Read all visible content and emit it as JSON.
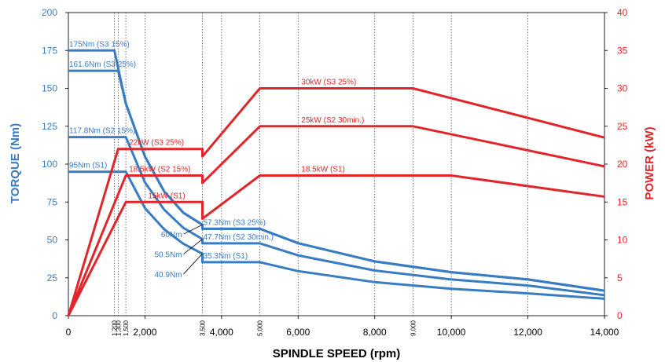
{
  "chart_data": {
    "type": "line",
    "title": "",
    "xlabel": "SPINDLE SPEED (rpm)",
    "ylabel_left": "TORQUE (Nm)",
    "ylabel_right": "POWER (kW)",
    "xlim": [
      0,
      14000
    ],
    "ylim_left": [
      0,
      200
    ],
    "ylim_right": [
      0,
      40
    ],
    "grid": "vertical dotted",
    "colors": {
      "torque": "#3a7cc2",
      "power": "#e1262b",
      "text": "#000000"
    },
    "x_ticks": [
      {
        "value": 0,
        "label": "0"
      },
      {
        "value": 2000,
        "label": "2,000"
      },
      {
        "value": 4000,
        "label": "4,000"
      },
      {
        "value": 6000,
        "label": "6,000"
      },
      {
        "value": 8000,
        "label": "8,000"
      },
      {
        "value": 10000,
        "label": "10,000"
      },
      {
        "value": 12000,
        "label": "12,000"
      },
      {
        "value": 14000,
        "label": "14,000"
      }
    ],
    "x_small_ticks": [
      {
        "value": 1200,
        "label": "1,200"
      },
      {
        "value": 1300,
        "label": "1,300"
      },
      {
        "value": 1500,
        "label": "1,500"
      },
      {
        "value": 3500,
        "label": "3,500"
      },
      {
        "value": 5000,
        "label": "5,000"
      },
      {
        "value": 9000,
        "label": "9,000"
      }
    ],
    "grid_x": [
      1200,
      1300,
      1500,
      2000,
      3500,
      4000,
      5000,
      6000,
      8000,
      9000,
      10000,
      12000
    ],
    "y_left_ticks": [
      0,
      25,
      50,
      75,
      100,
      125,
      150,
      175,
      200
    ],
    "y_right_ticks": [
      0,
      5,
      10,
      15,
      20,
      25,
      30,
      35,
      40
    ],
    "torque_series": [
      {
        "points": [
          [
            0,
            175
          ],
          [
            1200,
            175
          ],
          [
            1500,
            140
          ],
          [
            2000,
            105
          ],
          [
            2500,
            82
          ],
          [
            3000,
            68
          ],
          [
            3500,
            60
          ],
          [
            3500,
            57.3
          ],
          [
            5000,
            57.3
          ],
          [
            6000,
            47.8
          ],
          [
            8000,
            35.8
          ],
          [
            10000,
            28.7
          ],
          [
            12000,
            23.9
          ],
          [
            14000,
            16.5
          ]
        ]
      },
      {
        "points": [
          [
            0,
            161.6
          ],
          [
            1300,
            161.6
          ],
          [
            1500,
            140
          ],
          [
            2000,
            105
          ],
          [
            2500,
            82
          ],
          [
            3000,
            68
          ],
          [
            3500,
            60
          ],
          [
            3500,
            57.3
          ],
          [
            5000,
            57.3
          ],
          [
            6000,
            47.8
          ],
          [
            8000,
            35.8
          ],
          [
            10000,
            28.7
          ],
          [
            12000,
            23.9
          ],
          [
            14000,
            16.5
          ]
        ]
      },
      {
        "points": [
          [
            0,
            117.8
          ],
          [
            1500,
            117.8
          ],
          [
            2000,
            88
          ],
          [
            2500,
            70
          ],
          [
            3000,
            58
          ],
          [
            3500,
            50.5
          ],
          [
            3500,
            47.7
          ],
          [
            5000,
            47.7
          ],
          [
            6000,
            39.8
          ],
          [
            8000,
            29.8
          ],
          [
            10000,
            23.9
          ],
          [
            12000,
            19.9
          ],
          [
            14000,
            13.5
          ]
        ]
      },
      {
        "points": [
          [
            0,
            95
          ],
          [
            1500,
            95
          ],
          [
            2000,
            71
          ],
          [
            2500,
            57
          ],
          [
            3000,
            47.5
          ],
          [
            3500,
            40.9
          ],
          [
            3500,
            35.3
          ],
          [
            5000,
            35.3
          ],
          [
            6000,
            29.4
          ],
          [
            8000,
            22.1
          ],
          [
            10000,
            17.7
          ],
          [
            12000,
            14.7
          ],
          [
            14000,
            11.2
          ]
        ]
      }
    ],
    "power_series": [
      {
        "points": [
          [
            0,
            0
          ],
          [
            1300,
            22
          ],
          [
            3500,
            22
          ],
          [
            3500,
            21
          ],
          [
            5000,
            30
          ],
          [
            9000,
            30
          ],
          [
            14000,
            23.5
          ]
        ]
      },
      {
        "points": [
          [
            0,
            0
          ],
          [
            1500,
            18.5
          ],
          [
            3500,
            18.5
          ],
          [
            3500,
            17.5
          ],
          [
            5000,
            25
          ],
          [
            9000,
            25
          ],
          [
            14000,
            19.7
          ]
        ]
      },
      {
        "points": [
          [
            0,
            0
          ],
          [
            1500,
            15
          ],
          [
            3500,
            15
          ],
          [
            3500,
            12.8
          ],
          [
            5000,
            18.5
          ],
          [
            10000,
            18.5
          ],
          [
            14000,
            15.7
          ]
        ]
      }
    ],
    "torque_labels": [
      {
        "text": "175Nm (S3 15%)",
        "x": 0,
        "y": 175
      },
      {
        "text": "161.6Nm (S3 25%)",
        "x": 0,
        "y": 161.6
      },
      {
        "text": "117.8Nm (S2 15%)",
        "x": 0,
        "y": 117.8
      },
      {
        "text": "95Nm (S1)",
        "x": 0,
        "y": 95
      },
      {
        "text": "57.3Nm (S3 25%)",
        "x": 3500,
        "y": 57.3
      },
      {
        "text": "47.7Nm (S2 30min.)",
        "x": 3500,
        "y": 47.7
      },
      {
        "text": "35.3Nm (S1)",
        "x": 3500,
        "y": 35.3
      }
    ],
    "torque_callouts": [
      {
        "text": "60Nm",
        "x": 3500,
        "y": 60
      },
      {
        "text": "50.5Nm",
        "x": 3500,
        "y": 50.5
      },
      {
        "text": "40.9Nm",
        "x": 3500,
        "y": 40.9
      }
    ],
    "power_labels": [
      {
        "text": "22kW (S3 25%)",
        "x": 1500,
        "y": 22
      },
      {
        "text": "18.5kW (S2 15%)",
        "x": 1500,
        "y": 18.5
      },
      {
        "text": "15kW (S1)",
        "x": 2000,
        "y": 15
      },
      {
        "text": "30kW (S3 25%)",
        "x": 6000,
        "y": 30
      },
      {
        "text": "25kW (S2 30min.)",
        "x": 6000,
        "y": 25
      },
      {
        "text": "18.5kW (S1)",
        "x": 6000,
        "y": 18.5
      }
    ]
  }
}
